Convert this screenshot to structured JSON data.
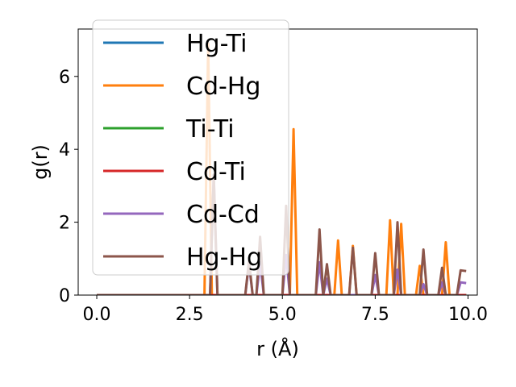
{
  "chart_data": {
    "type": "line",
    "xlabel": "r (Å)",
    "ylabel": "g(r)",
    "xlim": [
      -0.5,
      10.25
    ],
    "ylim": [
      0,
      7.3
    ],
    "xticks": [
      0.0,
      2.5,
      5.0,
      7.5,
      10.0
    ],
    "xtick_labels": [
      "0.0",
      "2.5",
      "5.0",
      "7.5",
      "10.0"
    ],
    "yticks": [
      0,
      2,
      4,
      6
    ],
    "ytick_labels": [
      "0",
      "2",
      "4",
      "6"
    ],
    "grid": false,
    "legend_position": "upper-left",
    "series": [
      {
        "name": "Hg-Ti",
        "color": "#1f77b4",
        "x": [
          0.0,
          9.95
        ],
        "y": [
          0.0,
          0.0
        ]
      },
      {
        "name": "Cd-Hg",
        "color": "#ff7f0e",
        "x": [
          0.0,
          2.9,
          3.0,
          3.1,
          3.2,
          5.2,
          5.3,
          5.4,
          6.4,
          6.5,
          6.6,
          6.8,
          6.9,
          7.0,
          7.8,
          7.9,
          8.0,
          8.1,
          8.2,
          8.3,
          8.6,
          8.7,
          8.8,
          9.3,
          9.4,
          9.5,
          9.95
        ],
        "y": [
          0.0,
          0.0,
          6.9,
          0.0,
          0.0,
          0.0,
          4.55,
          0.0,
          0.0,
          1.5,
          0.0,
          0.0,
          1.35,
          0.0,
          0.0,
          2.05,
          0.0,
          0.0,
          1.95,
          0.0,
          0.0,
          0.8,
          0.0,
          0.0,
          1.45,
          0.0,
          0.0
        ]
      },
      {
        "name": "Ti-Ti",
        "color": "#2ca02c",
        "x": [
          0.0,
          9.95
        ],
        "y": [
          0.0,
          0.0
        ]
      },
      {
        "name": "Cd-Ti",
        "color": "#d62728",
        "x": [
          0.0,
          9.95
        ],
        "y": [
          0.0,
          0.0
        ]
      },
      {
        "name": "Cd-Cd",
        "color": "#9467bd",
        "x": [
          0.0,
          3.05,
          3.15,
          3.25,
          4.0,
          4.1,
          4.2,
          4.3,
          4.4,
          4.5,
          5.0,
          5.1,
          5.2,
          5.9,
          6.0,
          6.1,
          6.2,
          6.3,
          7.4,
          7.5,
          7.6,
          8.0,
          8.1,
          8.2,
          8.7,
          8.8,
          8.9,
          9.2,
          9.3,
          9.4,
          9.7,
          9.8,
          9.95
        ],
        "y": [
          0.0,
          0.0,
          3.3,
          0.0,
          0.0,
          0.85,
          0.0,
          0.0,
          0.9,
          0.0,
          0.0,
          1.1,
          0.0,
          0.0,
          0.9,
          0.0,
          0.45,
          0.0,
          0.0,
          0.55,
          0.0,
          0.0,
          0.7,
          0.0,
          0.0,
          0.3,
          0.0,
          0.0,
          0.35,
          0.0,
          0.0,
          0.35,
          0.33
        ]
      },
      {
        "name": "Hg-Hg",
        "color": "#8c564b",
        "x": [
          0.0,
          3.05,
          3.15,
          3.25,
          4.0,
          4.1,
          4.2,
          4.3,
          4.4,
          4.5,
          5.0,
          5.1,
          5.2,
          5.9,
          6.0,
          6.1,
          6.2,
          6.3,
          6.8,
          6.9,
          7.0,
          7.4,
          7.5,
          7.6,
          8.0,
          8.1,
          8.2,
          8.7,
          8.8,
          8.9,
          9.2,
          9.3,
          9.4,
          9.7,
          9.8,
          9.95
        ],
        "y": [
          0.0,
          0.0,
          3.3,
          0.0,
          0.0,
          0.95,
          0.0,
          0.0,
          1.6,
          0.0,
          0.0,
          2.45,
          0.0,
          0.0,
          1.8,
          0.0,
          0.85,
          0.0,
          0.0,
          1.3,
          0.0,
          0.0,
          1.15,
          0.0,
          0.0,
          2.0,
          0.0,
          0.0,
          1.25,
          0.0,
          0.0,
          0.75,
          0.0,
          0.0,
          0.68,
          0.66
        ]
      }
    ]
  }
}
